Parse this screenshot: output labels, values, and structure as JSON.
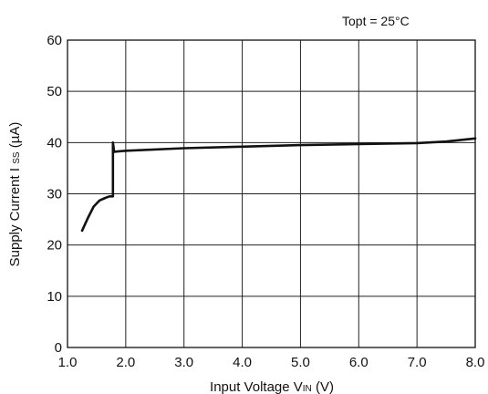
{
  "chart_data": {
    "type": "line",
    "annotation": "Topt = 25°C",
    "xlabel": {
      "pre": "Input Voltage V",
      "sub": "IN",
      "post": " (V)"
    },
    "ylabel": {
      "pre": "Supply Current I ",
      "sub": "SS",
      "post": " (µA)"
    },
    "xlim": [
      1.0,
      8.0
    ],
    "ylim": [
      0,
      60
    ],
    "x_ticks": [
      "1.0",
      "2.0",
      "3.0",
      "4.0",
      "5.0",
      "6.0",
      "7.0",
      "8.0"
    ],
    "y_ticks": [
      "0",
      "10",
      "20",
      "30",
      "40",
      "50",
      "60"
    ],
    "grid": true,
    "series": [
      {
        "x": [
          1.25,
          1.35,
          1.45,
          1.55,
          1.65,
          1.72,
          1.78,
          1.78,
          1.8,
          2.0,
          3.0,
          4.0,
          5.0,
          6.0,
          7.0,
          7.5,
          8.0
        ],
        "y": [
          22.8,
          25.3,
          27.5,
          28.7,
          29.2,
          29.5,
          29.5,
          40.0,
          38.2,
          38.4,
          38.9,
          39.2,
          39.5,
          39.7,
          39.9,
          40.2,
          40.8
        ]
      }
    ]
  }
}
